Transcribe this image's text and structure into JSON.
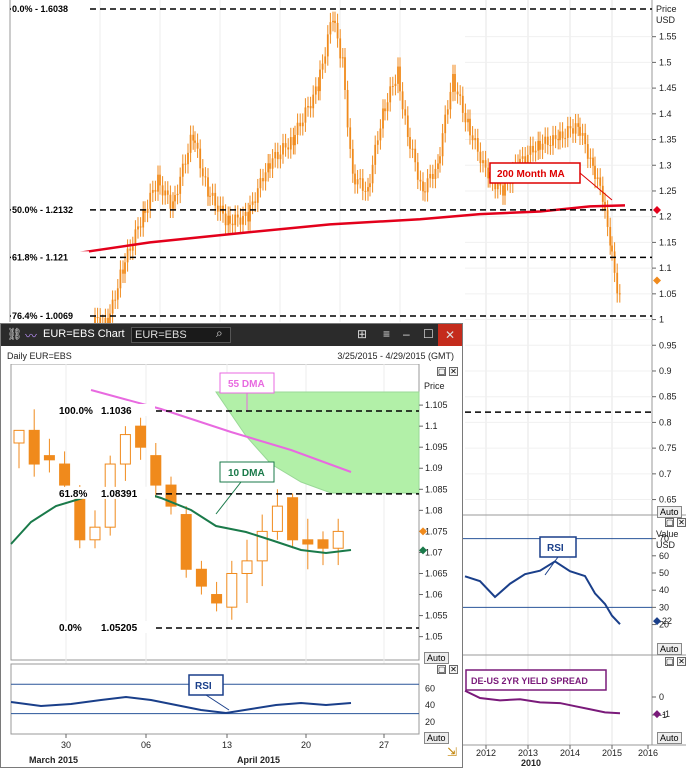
{
  "monthly_chart": {
    "axis_title": "Price\nUSD",
    "y_ticks": [
      "1.55",
      "1.5",
      "1.45",
      "1.4",
      "1.35",
      "1.3",
      "1.25",
      "1.2",
      "1.15",
      "1.1",
      "1.05",
      "1",
      "0.95",
      "0.9",
      "0.85",
      "0.8",
      "0.75",
      "0.7",
      "0.65"
    ],
    "fib_levels": [
      {
        "label": "0.0% - 1.6038",
        "value": 1.6038
      },
      {
        "label": "50.0% - 1.2132",
        "value": 1.2132
      },
      {
        "label": "61.8% - 1.121",
        "value": 1.121
      },
      {
        "label": "76.4% - 1.0069",
        "value": 1.0069
      }
    ],
    "extra_line_value": 0.82,
    "ma_label": "200 Month MA",
    "auto_label": "Auto",
    "x_ticks": [
      "2012",
      "2013",
      "2014",
      "2015",
      "2016"
    ],
    "x_subtick": "2010",
    "colors": {
      "candles": "#f08a1c",
      "ma": "#e3001b",
      "fib": "#000000"
    }
  },
  "rsi_monthly": {
    "label": "RSI",
    "axis_title": "Value\nUSD",
    "y_ticks": [
      "70",
      "60",
      "50",
      "40",
      "30",
      "20"
    ],
    "last_value": "22",
    "auto_label": "Auto"
  },
  "spread_panel": {
    "label": "DE-US 2YR YIELD SPREAD",
    "y_ticks": [
      "0",
      "-1"
    ],
    "last_value": "-1",
    "auto_label": "Auto"
  },
  "daily_window": {
    "title": "EUR=EBS Chart",
    "ric": "EUR=EBS",
    "subtitle_left": "Daily EUR=EBS",
    "subtitle_right": "3/25/2015 - 4/29/2015 (GMT)",
    "axis_title": "Price",
    "y_ticks": [
      "1.105",
      "1.1",
      "1.095",
      "1.09",
      "1.085",
      "1.08",
      "1.075",
      "1.07",
      "1.065",
      "1.06",
      "1.055",
      "1.05"
    ],
    "fib_levels": [
      {
        "label_pct": "100.0%",
        "label_val": "1.1036",
        "value": 1.1036
      },
      {
        "label_pct": "61.8%",
        "label_val": "1.08391",
        "value": 1.08391
      },
      {
        "label_pct": "0.0%",
        "label_val": "1.05205",
        "value": 1.05205
      }
    ],
    "dma55_label": "55 DMA",
    "dma10_label": "10 DMA",
    "rsi_label": "RSI",
    "rsi_ticks": [
      "60",
      "40",
      "20"
    ],
    "x_ticks": [
      "30",
      "06",
      "13",
      "20",
      "27"
    ],
    "x_months": [
      "March 2015",
      "April 2015"
    ],
    "auto_label": "Auto",
    "colors": {
      "up": "#ffffff",
      "down": "#f08a1c",
      "dma10": "#1a7a4a",
      "dma55": "#e86ae0",
      "rsi": "#1a3f8a"
    }
  },
  "chart_data": [
    {
      "type": "line",
      "title": "",
      "x": [
        "2012",
        "2013",
        "2014",
        "2015",
        "2016"
      ],
      "series": [
        {
          "name": "200 Month MA",
          "values": [
            1.2,
            1.205,
            1.21,
            1.22,
            1.225
          ]
        }
      ],
      "ylim": [
        0.62,
        1.62
      ],
      "annotations": [
        "0.0% - 1.6038",
        "50.0% - 1.2132",
        "61.8% - 1.121",
        "76.4% - 1.0069"
      ]
    },
    {
      "type": "bar",
      "title": "Daily EUR=EBS",
      "ylim": [
        1.048,
        1.111
      ],
      "candles": [
        {
          "o": 1.096,
          "h": 1.099,
          "l": 1.09,
          "c": 1.099
        },
        {
          "o": 1.099,
          "h": 1.104,
          "l": 1.088,
          "c": 1.091
        },
        {
          "o": 1.093,
          "h": 1.097,
          "l": 1.089,
          "c": 1.092
        },
        {
          "o": 1.091,
          "h": 1.094,
          "l": 1.083,
          "c": 1.086
        },
        {
          "o": 1.084,
          "h": 1.086,
          "l": 1.071,
          "c": 1.073
        },
        {
          "o": 1.073,
          "h": 1.08,
          "l": 1.071,
          "c": 1.076
        },
        {
          "o": 1.076,
          "h": 1.093,
          "l": 1.074,
          "c": 1.091
        },
        {
          "o": 1.091,
          "h": 1.1,
          "l": 1.087,
          "c": 1.098
        },
        {
          "o": 1.1,
          "h": 1.102,
          "l": 1.092,
          "c": 1.095
        },
        {
          "o": 1.093,
          "h": 1.096,
          "l": 1.083,
          "c": 1.086
        },
        {
          "o": 1.086,
          "h": 1.088,
          "l": 1.079,
          "c": 1.081
        },
        {
          "o": 1.079,
          "h": 1.081,
          "l": 1.064,
          "c": 1.066
        },
        {
          "o": 1.066,
          "h": 1.068,
          "l": 1.06,
          "c": 1.062
        },
        {
          "o": 1.06,
          "h": 1.063,
          "l": 1.056,
          "c": 1.058
        },
        {
          "o": 1.057,
          "h": 1.068,
          "l": 1.054,
          "c": 1.065
        },
        {
          "o": 1.065,
          "h": 1.073,
          "l": 1.058,
          "c": 1.068
        },
        {
          "o": 1.068,
          "h": 1.079,
          "l": 1.062,
          "c": 1.075
        },
        {
          "o": 1.075,
          "h": 1.085,
          "l": 1.073,
          "c": 1.081
        },
        {
          "o": 1.083,
          "h": 1.084,
          "l": 1.071,
          "c": 1.073
        },
        {
          "o": 1.073,
          "h": 1.078,
          "l": 1.066,
          "c": 1.072
        },
        {
          "o": 1.073,
          "h": 1.075,
          "l": 1.067,
          "c": 1.071
        },
        {
          "o": 1.071,
          "h": 1.078,
          "l": 1.067,
          "c": 1.075
        }
      ]
    }
  ]
}
